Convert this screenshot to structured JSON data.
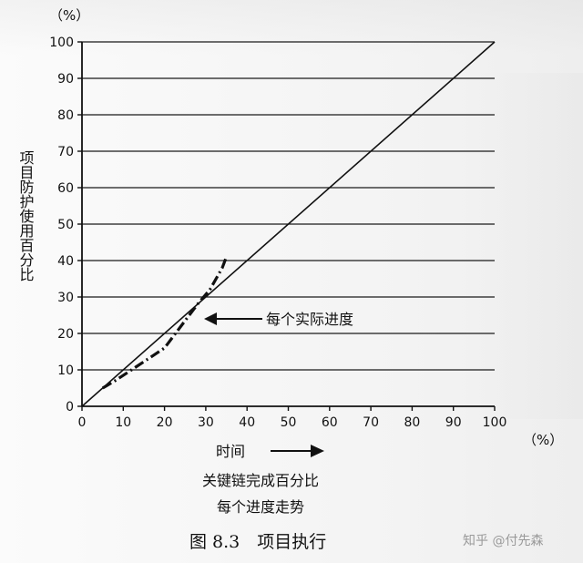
{
  "chart_data": {
    "type": "line",
    "x_unit": "（%）",
    "y_unit": "（%）",
    "xlim": [
      0,
      100
    ],
    "ylim": [
      0,
      100
    ],
    "x_ticks": [
      0,
      10,
      20,
      30,
      40,
      50,
      60,
      70,
      80,
      90,
      100
    ],
    "y_ticks": [
      0,
      10,
      20,
      30,
      40,
      50,
      60,
      70,
      80,
      90,
      100
    ],
    "grid": "horizontal",
    "ylabel": "项目防护使用百分比",
    "xlabel_lines": [
      "时间",
      "关键链完成百分比",
      "每个进度走势"
    ],
    "annotation": "每个实际进度",
    "series": [
      {
        "style": "solid",
        "x": [
          0,
          100
        ],
        "y": [
          0,
          100
        ]
      },
      {
        "style": "dash-dot",
        "x": [
          5,
          8,
          12,
          16,
          20,
          24,
          28,
          31,
          34,
          35
        ],
        "y": [
          5,
          7,
          10,
          13,
          16,
          22,
          28,
          32,
          38,
          41
        ]
      }
    ]
  },
  "caption": "图 8.3　项目执行",
  "watermark": "知乎 @付先森"
}
